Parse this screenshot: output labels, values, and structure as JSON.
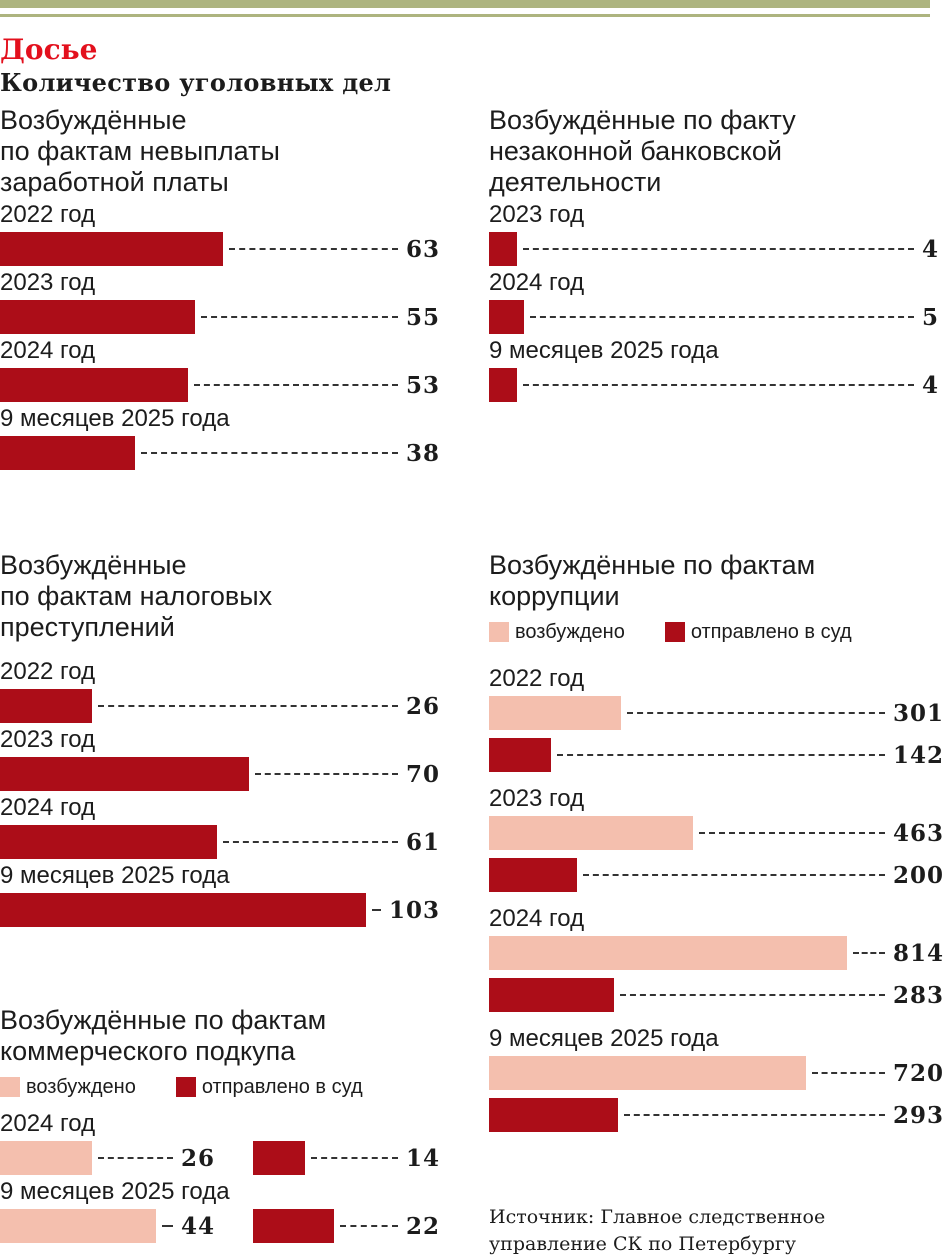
{
  "header": {
    "kicker": "Досье",
    "title": "Количество уголовных дел"
  },
  "colors": {
    "excited": "#f4bfae",
    "court": "#ac0d18",
    "kicker": "#e3101d",
    "band": "#adb47f"
  },
  "legend": {
    "excited": "возбуждено",
    "court": "отправлено в суд"
  },
  "source": "Источник: Главное следственное\nуправление СК по Петербургу",
  "chart_data": [
    {
      "type": "bar",
      "orientation": "horizontal",
      "title": "Возбуждённые\nпо фактам невыплаты\nзаработной платы",
      "categories": [
        "2022 год",
        "2023 год",
        "2024 год",
        "9 месяцев 2025 года"
      ],
      "values": [
        63,
        55,
        53,
        38
      ]
    },
    {
      "type": "bar",
      "orientation": "horizontal",
      "title": "Возбуждённые по факту\nнезаконной банковской\nдеятельности",
      "categories": [
        "2023 год",
        "2024 год",
        "9 месяцев 2025 года"
      ],
      "values": [
        4,
        5,
        4
      ]
    },
    {
      "type": "bar",
      "orientation": "horizontal",
      "title": "Возбуждённые\nпо фактам налоговых\nпреступлений",
      "categories": [
        "2022 год",
        "2023 год",
        "2024 год",
        "9 месяцев 2025 года"
      ],
      "values": [
        26,
        70,
        61,
        103
      ]
    },
    {
      "type": "bar",
      "orientation": "horizontal",
      "title": "Возбуждённые по фактам\nкоррупции",
      "legend": "top",
      "categories": [
        "2022 год",
        "2023 год",
        "2024 год",
        "9 месяцев 2025 года"
      ],
      "series": [
        {
          "name": "возбуждено",
          "values": [
            301,
            463,
            814,
            720
          ]
        },
        {
          "name": "отправлено в суд",
          "values": [
            142,
            200,
            283,
            293
          ]
        }
      ]
    },
    {
      "type": "bar",
      "orientation": "horizontal",
      "title": "Возбуждённые по фактам\nкоммерческого подкупа",
      "legend": "top",
      "categories": [
        "2024 год",
        "9 месяцев 2025 года"
      ],
      "series": [
        {
          "name": "возбуждено",
          "values": [
            26,
            44
          ]
        },
        {
          "name": "отправлено в суд",
          "values": [
            14,
            22
          ]
        }
      ]
    }
  ]
}
